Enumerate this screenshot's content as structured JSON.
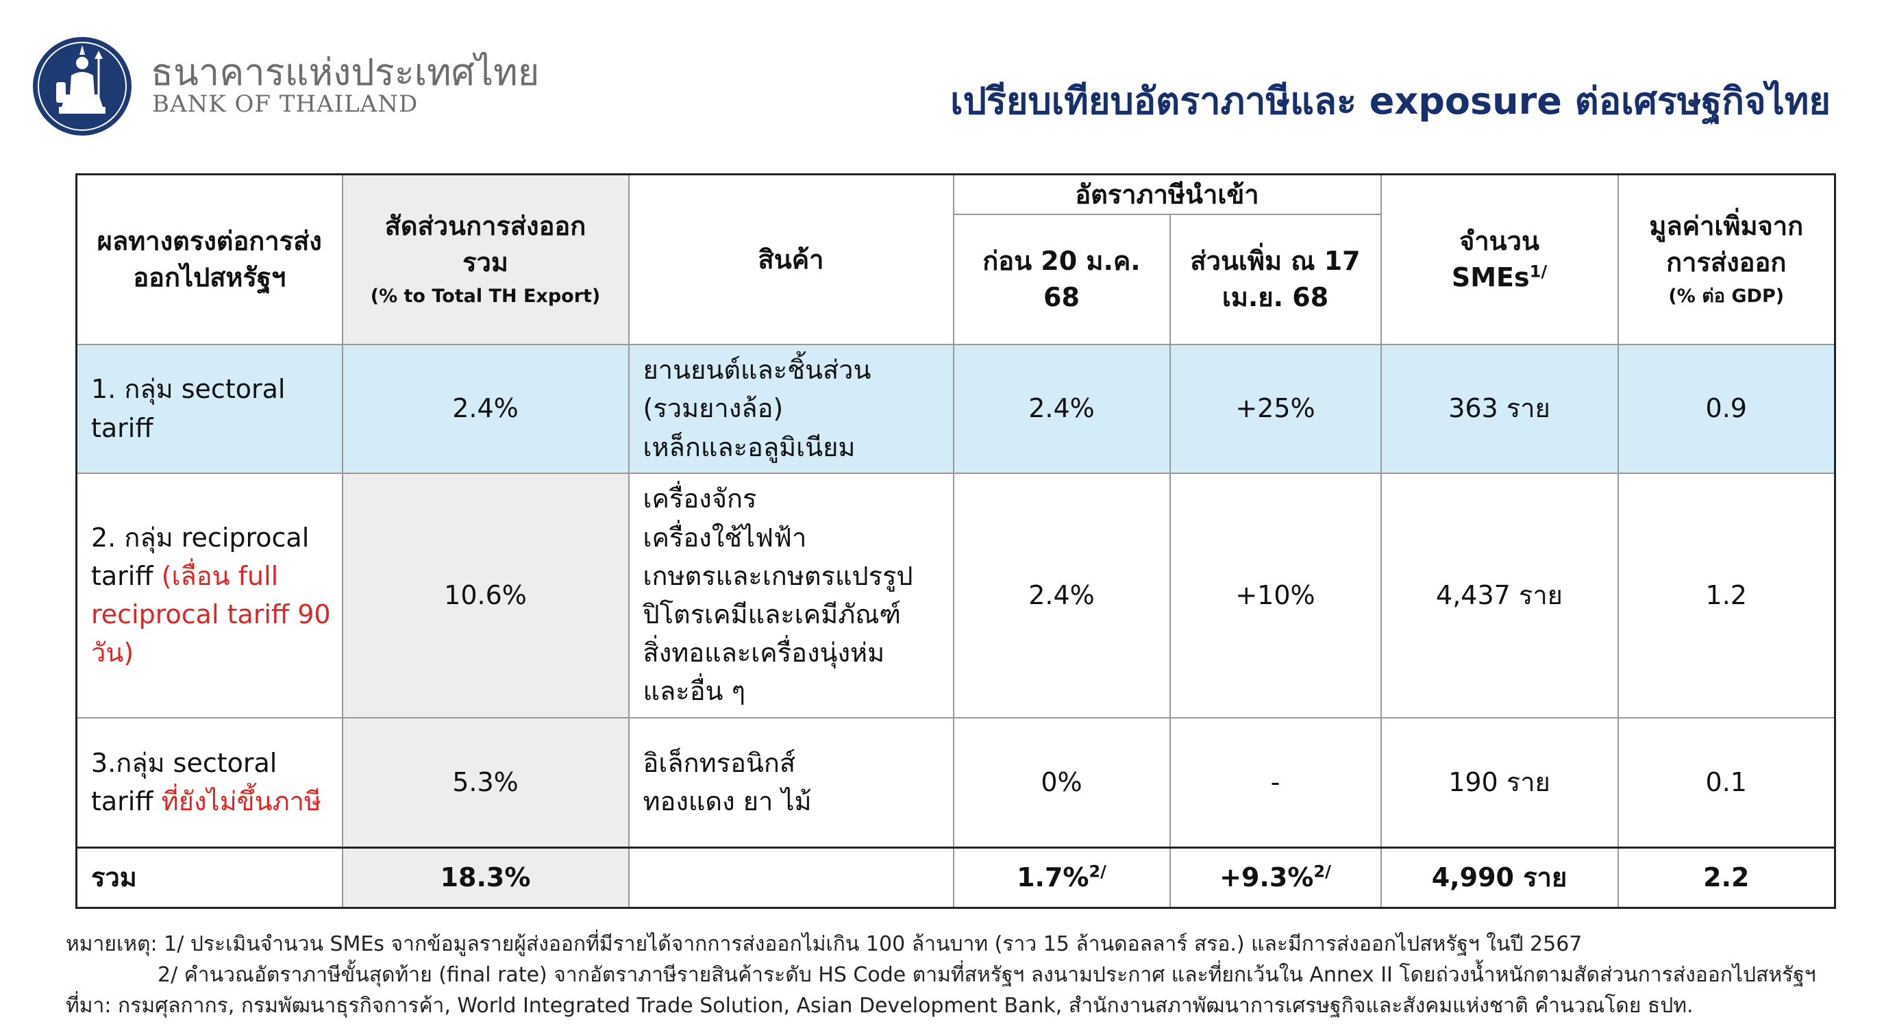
{
  "header": {
    "bank_name_th": "ธนาคารแห่งประเทศไทย",
    "bank_name_en": "BANK OF THAILAND",
    "title": "เปรียบเทียบอัตราภาษีและ exposure ต่อเศรษฐกิจไทย"
  },
  "table": {
    "headers": {
      "impact": "ผลทางตรงต่อการส่งออกไปสหรัฐฯ",
      "share": "สัดส่วนการส่งออกรวม",
      "share_sub": "(% to Total TH Export)",
      "product": "สินค้า",
      "tariff_group": "อัตราภาษีนำเข้า",
      "before": "ก่อน 20 ม.ค. 68",
      "increase": "ส่วนเพิ่ม ณ 17 เม.ย. 68",
      "smes": "จำนวน SMEs",
      "smes_note": "1/",
      "value_added": "มูลค่าเพิ่มจากการส่งออก",
      "value_added_sub": "(% ต่อ GDP)"
    },
    "rows": [
      {
        "group": "1. กลุ่ม sectoral tariff",
        "group_red": "",
        "share": "2.4%",
        "products": [
          "ยานยนต์และชิ้นส่วน",
          "(รวมยางล้อ)",
          "เหล็กและอลูมิเนียม"
        ],
        "before": "2.4%",
        "increase": "+25%",
        "smes": "363 ราย",
        "value_added": "0.9"
      },
      {
        "group": "2. กลุ่ม reciprocal tariff",
        "group_red": "(เลื่อน full reciprocal tariff 90 วัน)",
        "share": "10.6%",
        "products": [
          "เครื่องจักร",
          "เครื่องใช้ไฟฟ้า",
          "เกษตรและเกษตรแปรรูป",
          "ปิโตรเคมีและเคมีภัณฑ์",
          "สิ่งทอและเครื่องนุ่งห่ม",
          "และอื่น ๆ"
        ],
        "before": "2.4%",
        "increase": "+10%",
        "smes": "4,437 ราย",
        "value_added": "1.2"
      },
      {
        "group": "3.กลุ่ม sectoral tariff",
        "group_red": "ที่ยังไม่ขึ้นภาษี",
        "share": "5.3%",
        "products": [
          "อิเล็กทรอนิกส์",
          "ทองแดง ยา ไม้"
        ],
        "before": "0%",
        "increase": "-",
        "smes": "190 ราย",
        "value_added": "0.1"
      }
    ],
    "total": {
      "label": "รวม",
      "share": "18.3%",
      "before": "1.7%",
      "before_note": "2/",
      "increase": "+9.3%",
      "increase_note": "2/",
      "smes": "4,990 ราย",
      "value_added": "2.2"
    }
  },
  "notes": {
    "note1": "หมายเหตุ: 1/ ประเมินจำนวน SMEs จากข้อมูลรายผู้ส่งออกที่มีรายได้จากการส่งออกไม่เกิน 100 ล้านบาท (ราว 15 ล้านดอลลาร์ สรอ.) และมีการส่งออกไปสหรัฐฯ ในปี 2567",
    "note2": "2/ คำนวณอัตราภาษีขั้นสุดท้าย (final rate) จากอัตราภาษีรายสินค้าระดับ HS Code ตามที่สหรัฐฯ ลงนามประกาศ และที่ยกเว้นใน Annex II โดยถ่วงน้ำหนักตามสัดส่วนการส่งออกไปสหรัฐฯ",
    "source": "ที่มา: กรมศุลกากร, กรมพัฒนาธุรกิจการค้า, World Integrated Trade Solution, Asian Development Bank, สำนักงานสภาพัฒนาการเศรษฐกิจและสังคมแห่งชาติ คำนวณโดย ธปท."
  },
  "colors": {
    "title": "#17306b",
    "logo": "#1d3a73",
    "highlight_row": "#d4ecf7",
    "share_column": "#ededed",
    "red_text": "#e02424"
  },
  "icons": {
    "logo": "bank-of-thailand-emblem-icon"
  }
}
